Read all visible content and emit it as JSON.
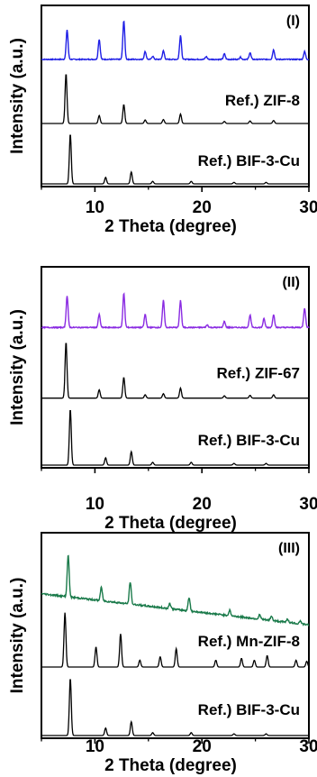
{
  "chart_data": [
    {
      "type": "line",
      "xlabel": "2 Theta (degree)",
      "ylabel": "Intensity (a.u.)",
      "xlim": [
        5,
        30
      ],
      "xticks": [
        "10",
        "20",
        "30"
      ],
      "panel_label": "(I)",
      "series": [
        {
          "label": "",
          "color": "#1f1fe6",
          "baseline": 0.77,
          "noise": 0.012,
          "slope": 0.0,
          "peaks": [
            [
              7.4,
              0.75
            ],
            [
              10.4,
              0.52
            ],
            [
              12.7,
              1.0
            ],
            [
              14.7,
              0.2
            ],
            [
              16.4,
              0.22
            ],
            [
              18.0,
              0.62
            ],
            [
              22.1,
              0.14
            ],
            [
              24.5,
              0.17
            ],
            [
              26.7,
              0.25
            ],
            [
              29.6,
              0.2
            ],
            [
              15.4,
              0.08
            ],
            [
              20.4,
              0.07
            ],
            [
              23.6,
              0.06
            ]
          ]
        },
        {
          "label": "Ref.) ZIF-8",
          "color": "#000000",
          "baseline": 0.47,
          "noise": 0.0,
          "slope": 0.0,
          "peaks": [
            [
              7.3,
              1.0
            ],
            [
              10.4,
              0.16
            ],
            [
              12.7,
              0.38
            ],
            [
              14.7,
              0.07
            ],
            [
              16.4,
              0.08
            ],
            [
              18.0,
              0.19
            ],
            [
              22.1,
              0.04
            ],
            [
              24.5,
              0.05
            ],
            [
              26.7,
              0.06
            ]
          ]
        },
        {
          "label": "Ref.) BIF-3-Cu",
          "color": "#000000",
          "baseline": 0.03,
          "noise": 0.0,
          "slope": 0.0,
          "peaks": [
            [
              7.7,
              1.0
            ],
            [
              11.0,
              0.13
            ],
            [
              13.4,
              0.24
            ],
            [
              15.4,
              0.05
            ],
            [
              19.0,
              0.05
            ],
            [
              23.0,
              0.03
            ],
            [
              26.0,
              0.03
            ]
          ]
        }
      ]
    },
    {
      "type": "line",
      "xlabel": "2 Theta (degree)",
      "ylabel": "Intensity (a.u.)",
      "xlim": [
        5,
        30
      ],
      "xticks": [
        "10",
        "20",
        "30"
      ],
      "panel_label": "(II)",
      "series": [
        {
          "label": "",
          "color": "#8a2be2",
          "baseline": 0.8,
          "noise": 0.012,
          "slope": 0.0,
          "peaks": [
            [
              7.4,
              0.72
            ],
            [
              10.4,
              0.3
            ],
            [
              12.7,
              0.78
            ],
            [
              14.7,
              0.3
            ],
            [
              16.4,
              0.62
            ],
            [
              18.0,
              0.62
            ],
            [
              22.1,
              0.14
            ],
            [
              24.5,
              0.28
            ],
            [
              26.7,
              0.3
            ],
            [
              29.6,
              0.45
            ],
            [
              25.8,
              0.2
            ],
            [
              20.5,
              0.06
            ]
          ]
        },
        {
          "label": "Ref.) ZIF-67",
          "color": "#000000",
          "baseline": 0.47,
          "noise": 0.0,
          "slope": 0.0,
          "peaks": [
            [
              7.3,
              1.0
            ],
            [
              10.4,
              0.15
            ],
            [
              12.7,
              0.37
            ],
            [
              14.7,
              0.06
            ],
            [
              16.4,
              0.08
            ],
            [
              18.0,
              0.18
            ],
            [
              22.1,
              0.04
            ],
            [
              24.5,
              0.05
            ],
            [
              26.7,
              0.06
            ]
          ]
        },
        {
          "label": "Ref.) BIF-3-Cu",
          "color": "#000000",
          "baseline": 0.03,
          "noise": 0.0,
          "slope": 0.0,
          "peaks": [
            [
              7.7,
              1.0
            ],
            [
              11.0,
              0.13
            ],
            [
              13.4,
              0.24
            ],
            [
              15.4,
              0.05
            ],
            [
              19.0,
              0.05
            ],
            [
              23.0,
              0.03
            ],
            [
              26.0,
              0.03
            ]
          ]
        }
      ]
    },
    {
      "type": "line",
      "xlabel": "2 Theta (degree)",
      "ylabel": "Intensity (a.u.)",
      "xlim": [
        5,
        30
      ],
      "xticks": [
        "10",
        "20",
        "30"
      ],
      "panel_label": "(III)",
      "series": [
        {
          "label": "",
          "color": "#1a7a4a",
          "baseline": 0.74,
          "noise": 0.018,
          "slope": -0.0028,
          "peaks": [
            [
              7.5,
              0.95
            ],
            [
              10.6,
              0.3
            ],
            [
              13.3,
              0.5
            ],
            [
              17.0,
              0.12
            ],
            [
              18.8,
              0.3
            ],
            [
              22.6,
              0.12
            ],
            [
              25.4,
              0.1
            ],
            [
              26.5,
              0.1
            ],
            [
              28.0,
              0.08
            ],
            [
              29.2,
              0.07
            ]
          ]
        },
        {
          "label": "Ref.) Mn-ZIF-8",
          "color": "#000000",
          "baseline": 0.45,
          "noise": 0.0,
          "slope": 0.0,
          "peaks": [
            [
              7.2,
              0.95
            ],
            [
              10.1,
              0.35
            ],
            [
              12.4,
              0.58
            ],
            [
              14.2,
              0.12
            ],
            [
              16.1,
              0.18
            ],
            [
              17.6,
              0.32
            ],
            [
              21.3,
              0.12
            ],
            [
              23.7,
              0.15
            ],
            [
              24.9,
              0.12
            ],
            [
              26.1,
              0.2
            ],
            [
              28.8,
              0.12
            ],
            [
              29.8,
              0.1
            ]
          ]
        },
        {
          "label": "Ref.) BIF-3-Cu",
          "color": "#000000",
          "baseline": 0.03,
          "noise": 0.0,
          "slope": 0.0,
          "peaks": [
            [
              7.7,
              1.0
            ],
            [
              11.0,
              0.13
            ],
            [
              13.4,
              0.24
            ],
            [
              15.4,
              0.05
            ],
            [
              19.0,
              0.05
            ],
            [
              23.0,
              0.03
            ],
            [
              26.0,
              0.03
            ]
          ]
        }
      ]
    }
  ]
}
